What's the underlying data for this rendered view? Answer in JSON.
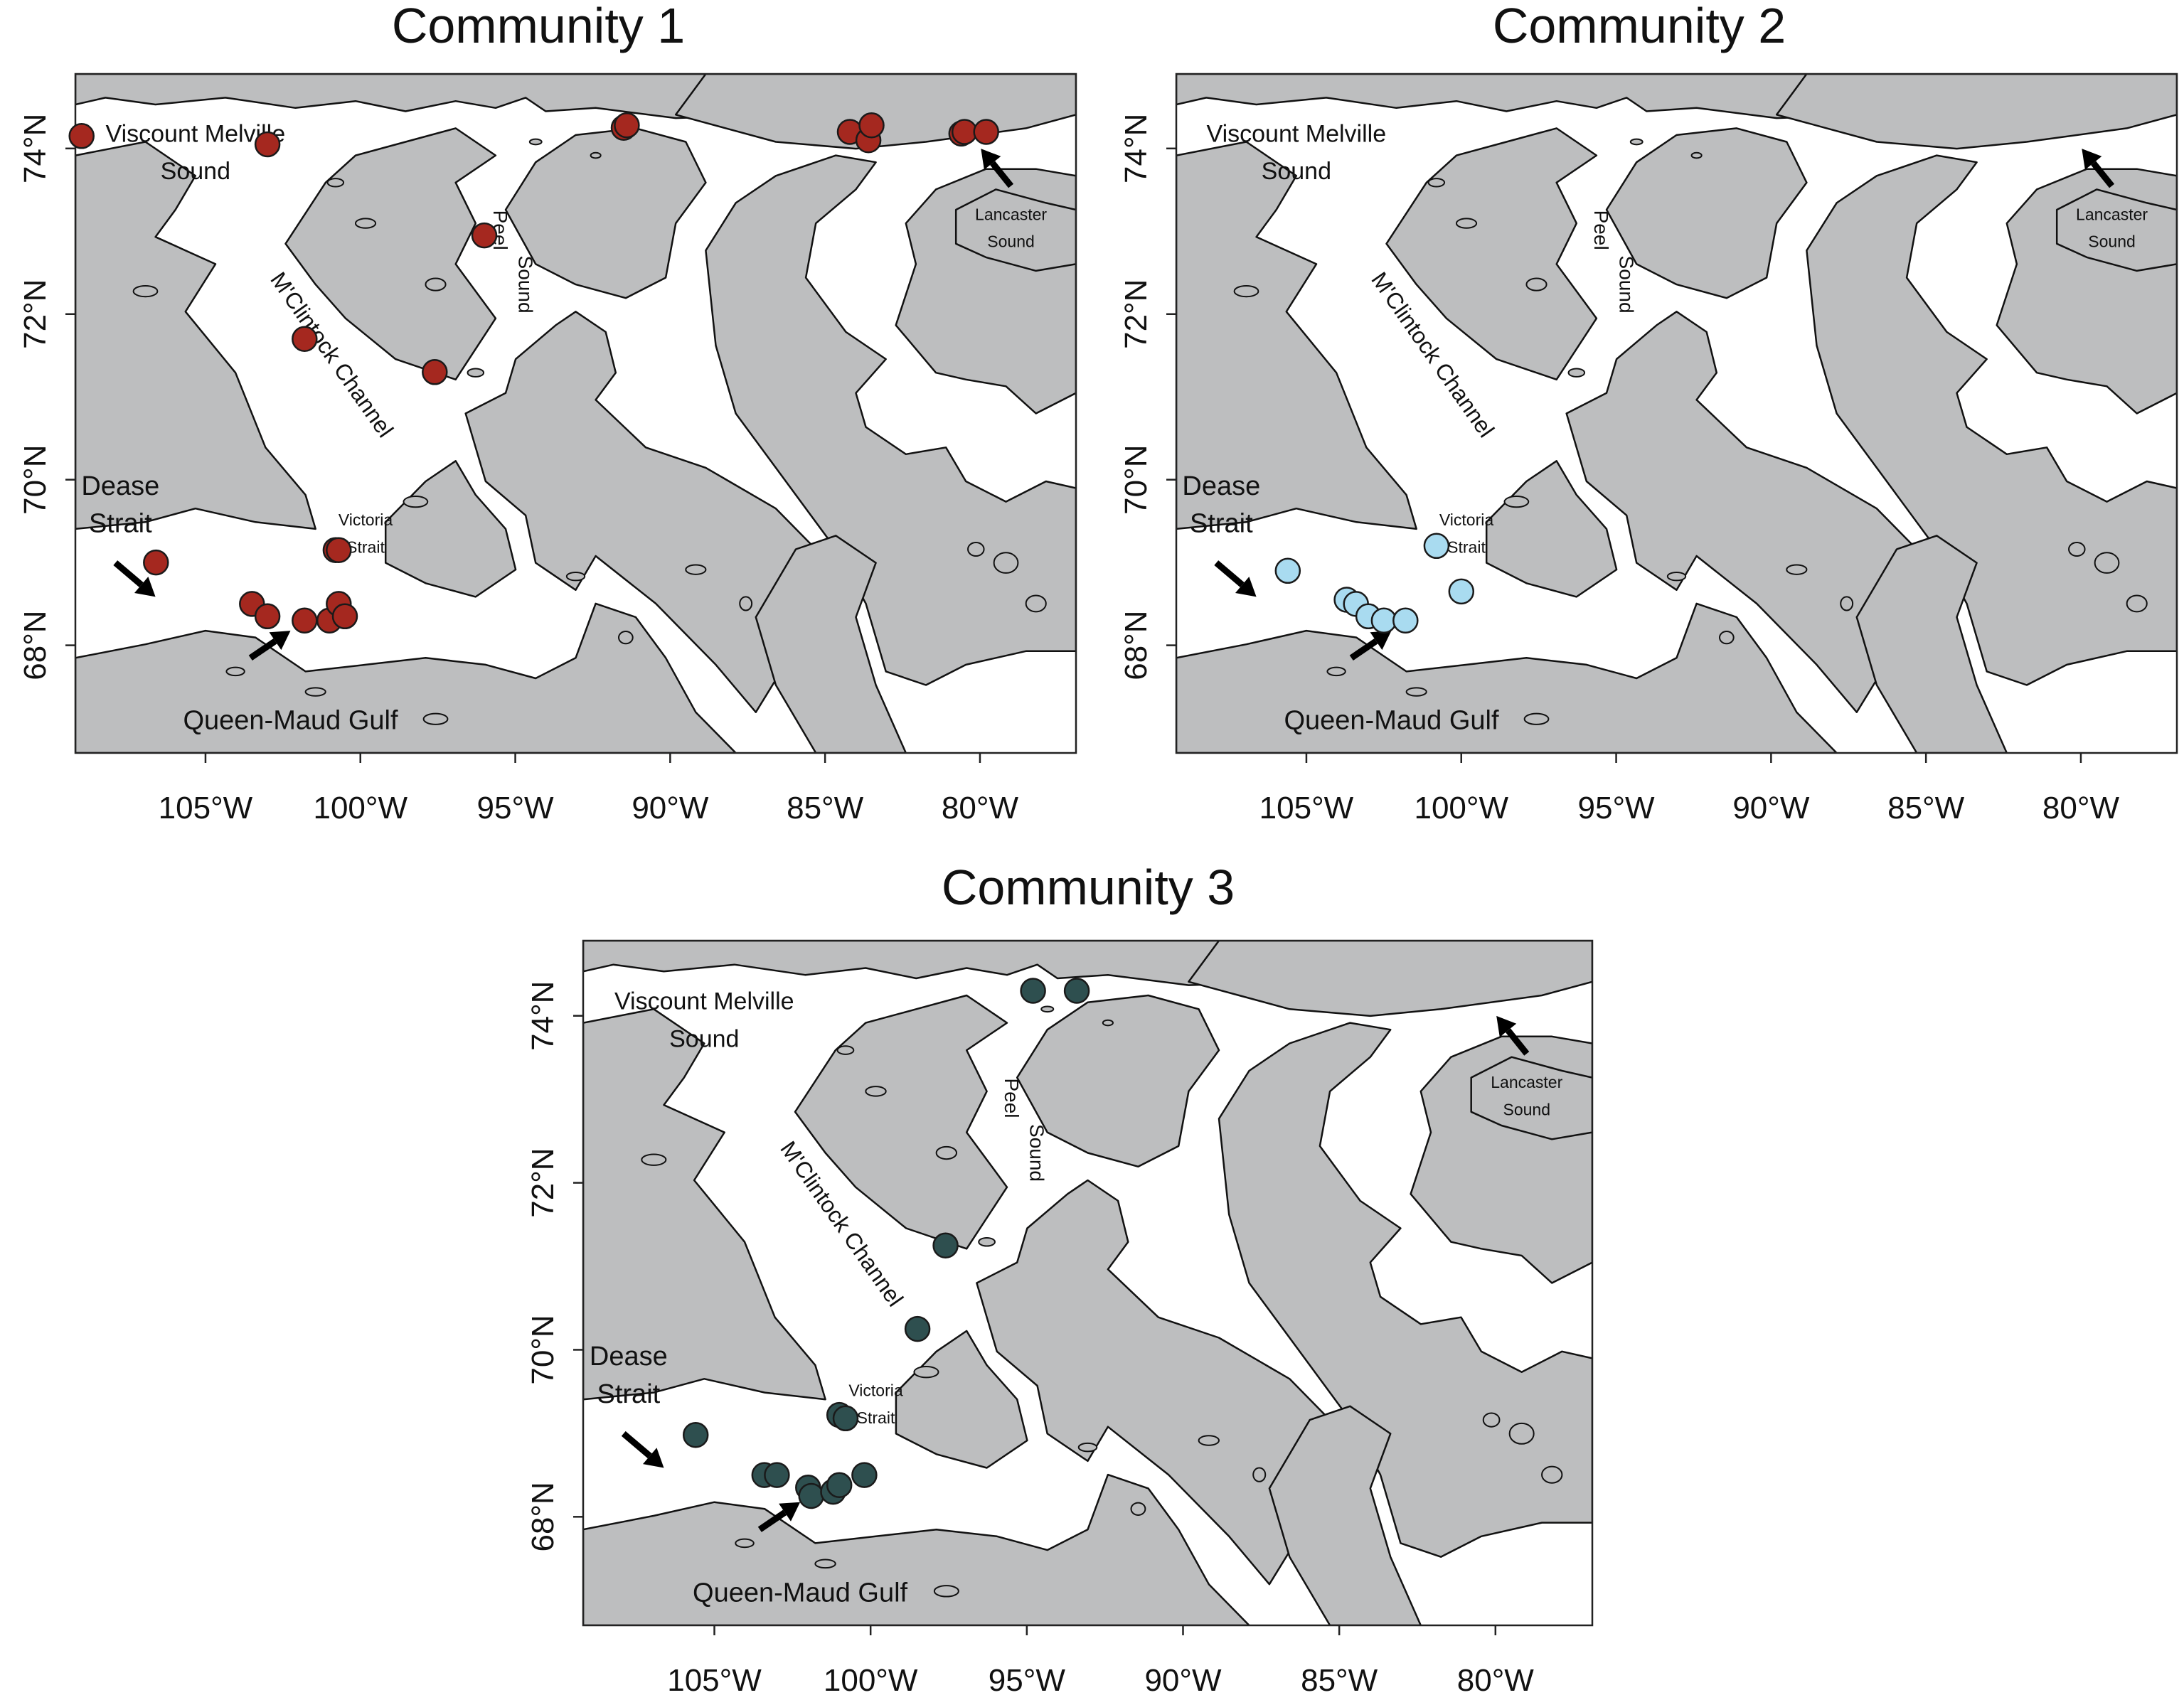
{
  "colors": {
    "land": "#bdbebf",
    "water": "#ffffff",
    "coast": "#111111",
    "frame": "#222222",
    "text": "#111111",
    "arrow": "#000000"
  },
  "axes": {
    "lon_ticks": [
      "105°W",
      "100°W",
      "95°W",
      "90°W",
      "85°W",
      "80°W"
    ],
    "lat_ticks": [
      "68°N",
      "70°N",
      "72°N",
      "74°N"
    ]
  },
  "place_labels": {
    "viscount_line1": "Viscount Melville",
    "viscount_line2": "Sound",
    "mclintock": "M'Clintock Channel",
    "peel_line1": "Peel",
    "peel_line2": "Sound",
    "dease_line1": "Dease",
    "dease_line2": "Strait",
    "victoria_line1": "Victoria",
    "victoria_line2": "Strait",
    "queen_maud": "Queen-Maud Gulf",
    "lancaster_line1": "Lancaster",
    "lancaster_line2": "Sound"
  },
  "panels": [
    {
      "title": "Community 1",
      "point_color": "#a5281f",
      "points": [
        {
          "lon": -109.0,
          "lat": 74.15
        },
        {
          "lon": -103.0,
          "lat": 74.05
        },
        {
          "lon": -91.5,
          "lat": 74.25
        },
        {
          "lon": -91.4,
          "lat": 74.28
        },
        {
          "lon": -84.2,
          "lat": 74.2
        },
        {
          "lon": -83.6,
          "lat": 74.1
        },
        {
          "lon": -83.5,
          "lat": 74.28
        },
        {
          "lon": -80.6,
          "lat": 74.18
        },
        {
          "lon": -80.5,
          "lat": 74.2
        },
        {
          "lon": -79.8,
          "lat": 74.2
        },
        {
          "lon": -96.0,
          "lat": 72.95
        },
        {
          "lon": -101.8,
          "lat": 71.7
        },
        {
          "lon": -97.6,
          "lat": 71.3
        },
        {
          "lon": -106.6,
          "lat": 69.0
        },
        {
          "lon": -100.8,
          "lat": 69.15
        },
        {
          "lon": -100.7,
          "lat": 69.15
        },
        {
          "lon": -103.5,
          "lat": 68.5
        },
        {
          "lon": -103.0,
          "lat": 68.35
        },
        {
          "lon": -101.8,
          "lat": 68.3
        },
        {
          "lon": -101.0,
          "lat": 68.3
        },
        {
          "lon": -100.7,
          "lat": 68.5
        },
        {
          "lon": -100.5,
          "lat": 68.35
        }
      ]
    },
    {
      "title": "Community 2",
      "point_color": "#a9dbf0",
      "points": [
        {
          "lon": -105.6,
          "lat": 68.9
        },
        {
          "lon": -100.8,
          "lat": 69.2
        },
        {
          "lon": -100.0,
          "lat": 68.65
        },
        {
          "lon": -103.7,
          "lat": 68.55
        },
        {
          "lon": -103.4,
          "lat": 68.5
        },
        {
          "lon": -103.0,
          "lat": 68.35
        },
        {
          "lon": -102.5,
          "lat": 68.3
        },
        {
          "lon": -101.8,
          "lat": 68.3
        }
      ]
    },
    {
      "title": "Community 3",
      "point_color": "#2e4f4f",
      "points": [
        {
          "lon": -94.8,
          "lat": 74.3
        },
        {
          "lon": -93.4,
          "lat": 74.3
        },
        {
          "lon": -97.6,
          "lat": 71.25
        },
        {
          "lon": -98.5,
          "lat": 70.25
        },
        {
          "lon": -105.6,
          "lat": 68.98
        },
        {
          "lon": -101.0,
          "lat": 69.22
        },
        {
          "lon": -100.8,
          "lat": 69.18
        },
        {
          "lon": -103.4,
          "lat": 68.5
        },
        {
          "lon": -103.0,
          "lat": 68.5
        },
        {
          "lon": -102.0,
          "lat": 68.35
        },
        {
          "lon": -101.9,
          "lat": 68.25
        },
        {
          "lon": -101.2,
          "lat": 68.3
        },
        {
          "lon": -101.0,
          "lat": 68.38
        },
        {
          "lon": -100.2,
          "lat": 68.5
        }
      ]
    }
  ]
}
